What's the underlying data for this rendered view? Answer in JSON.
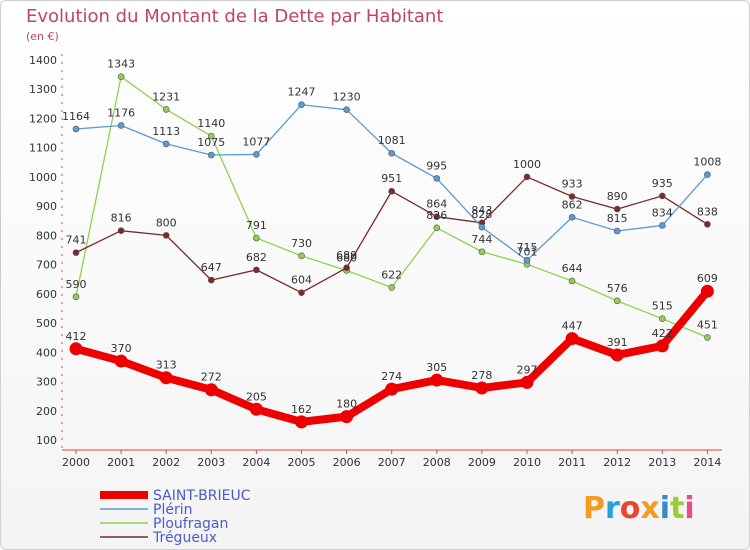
{
  "chart_data": {
    "type": "line",
    "title": "Evolution du Montant de la Dette par Habitant",
    "subtitle": "(en €)",
    "categories": [
      "2000",
      "2001",
      "2002",
      "2003",
      "2004",
      "2005",
      "2006",
      "2007",
      "2008",
      "2009",
      "2010",
      "2011",
      "2012",
      "2013",
      "2014"
    ],
    "yticks": [
      "100",
      "200",
      "300",
      "400",
      "500",
      "600",
      "700",
      "800",
      "900",
      "1000",
      "1100",
      "1200",
      "1300",
      "1400"
    ],
    "ylim": [
      100,
      1400
    ],
    "grid": false,
    "legend_position": "bottom-left",
    "series": [
      {
        "name": "SAINT-BRIEUC",
        "color": "#ee0000",
        "values": [
          412,
          370,
          313,
          272,
          205,
          162,
          180,
          274,
          305,
          278,
          297,
          447,
          391,
          422,
          609
        ]
      },
      {
        "name": "Plérin",
        "color": "#5b9bd5",
        "values": [
          1164,
          1176,
          1113,
          1075,
          1077,
          1247,
          1230,
          1081,
          995,
          828,
          715,
          862,
          815,
          834,
          1008
        ]
      },
      {
        "name": "Ploufragan",
        "color": "#8fd14f",
        "values": [
          590,
          1343,
          1231,
          1140,
          791,
          730,
          680,
          622,
          826,
          744,
          701,
          644,
          576,
          515,
          451
        ]
      },
      {
        "name": "Trégueux",
        "color": "#7b2a2a",
        "values": [
          741,
          816,
          800,
          647,
          682,
          604,
          689,
          951,
          864,
          843,
          1000,
          933,
          890,
          935,
          838
        ]
      }
    ]
  },
  "logo": {
    "text": "Proxiti",
    "colors": [
      "#f29b1e",
      "#2aa0d8",
      "#e8452b",
      "#f29b1e",
      "#3a88c8",
      "#9acd32",
      "#e84d8a"
    ]
  }
}
